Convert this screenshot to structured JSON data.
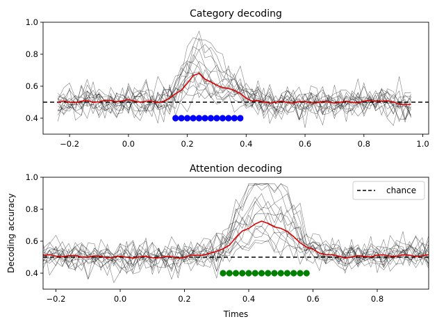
{
  "chart_data": [
    {
      "type": "line",
      "title": "Category decoding",
      "xlabel": "",
      "ylabel": "",
      "xlim": [
        -0.29,
        1.02
      ],
      "ylim": [
        0.3,
        1.0
      ],
      "xticks": [
        -0.2,
        0.0,
        0.2,
        0.4,
        0.6,
        0.8,
        1.0
      ],
      "xtick_labels": [
        "−0.2",
        "0.0",
        "0.2",
        "0.4",
        "0.6",
        "0.8",
        "1.0"
      ],
      "yticks": [
        0.4,
        0.6,
        0.8,
        1.0
      ],
      "ytick_labels": [
        "0.4",
        "0.6",
        "0.8",
        "1.0"
      ],
      "time": {
        "start": -0.24,
        "stop": 0.96,
        "step": 0.02
      },
      "subjects": 15,
      "mean_curve": {
        "name": "mean",
        "color": "#dd0000",
        "times": [
          -0.24,
          0.0,
          0.1,
          0.14,
          0.18,
          0.22,
          0.24,
          0.26,
          0.3,
          0.34,
          0.38,
          0.42,
          0.46,
          0.56,
          0.66,
          0.76,
          0.86,
          0.96
        ],
        "values": [
          0.5,
          0.51,
          0.5,
          0.52,
          0.58,
          0.66,
          0.68,
          0.65,
          0.6,
          0.59,
          0.55,
          0.51,
          0.5,
          0.5,
          0.5,
          0.5,
          0.51,
          0.48
        ]
      },
      "chance_level": 0.5,
      "significant_points": {
        "color": "#0000ff",
        "y": 0.4,
        "times": [
          0.16,
          0.18,
          0.2,
          0.22,
          0.24,
          0.26,
          0.28,
          0.3,
          0.32,
          0.34,
          0.36,
          0.38
        ]
      },
      "legend": null
    },
    {
      "type": "line",
      "title": "Attention decoding",
      "xlabel": "Times",
      "ylabel": "Decoding accuracy",
      "xlim": [
        -0.24,
        0.96
      ],
      "ylim": [
        0.3,
        1.0
      ],
      "xticks": [
        -0.2,
        0.0,
        0.2,
        0.4,
        0.6,
        0.8
      ],
      "xtick_labels": [
        "−0.2",
        "0.0",
        "0.2",
        "0.4",
        "0.6",
        "0.8"
      ],
      "yticks": [
        0.4,
        0.6,
        0.8,
        1.0
      ],
      "ytick_labels": [
        "0.4",
        "0.6",
        "0.8",
        "1.0"
      ],
      "time": {
        "start": -0.24,
        "stop": 0.96,
        "step": 0.02
      },
      "subjects": 15,
      "mean_curve": {
        "name": "mean",
        "color": "#dd0000",
        "times": [
          -0.24,
          0.0,
          0.2,
          0.3,
          0.34,
          0.38,
          0.42,
          0.44,
          0.46,
          0.5,
          0.54,
          0.58,
          0.62,
          0.66,
          0.7,
          0.8,
          0.96
        ],
        "values": [
          0.51,
          0.5,
          0.5,
          0.53,
          0.58,
          0.66,
          0.71,
          0.72,
          0.71,
          0.68,
          0.63,
          0.56,
          0.53,
          0.51,
          0.5,
          0.51,
          0.51
        ]
      },
      "chance_level": 0.5,
      "significant_points": {
        "color": "#008000",
        "y": 0.4,
        "times": [
          0.32,
          0.34,
          0.36,
          0.38,
          0.4,
          0.42,
          0.44,
          0.46,
          0.48,
          0.5,
          0.52,
          0.54,
          0.56,
          0.58
        ]
      },
      "legend": {
        "position": "upper-right",
        "entries": [
          {
            "label": "chance",
            "style": "dashed",
            "color": "#000000"
          }
        ]
      }
    }
  ]
}
